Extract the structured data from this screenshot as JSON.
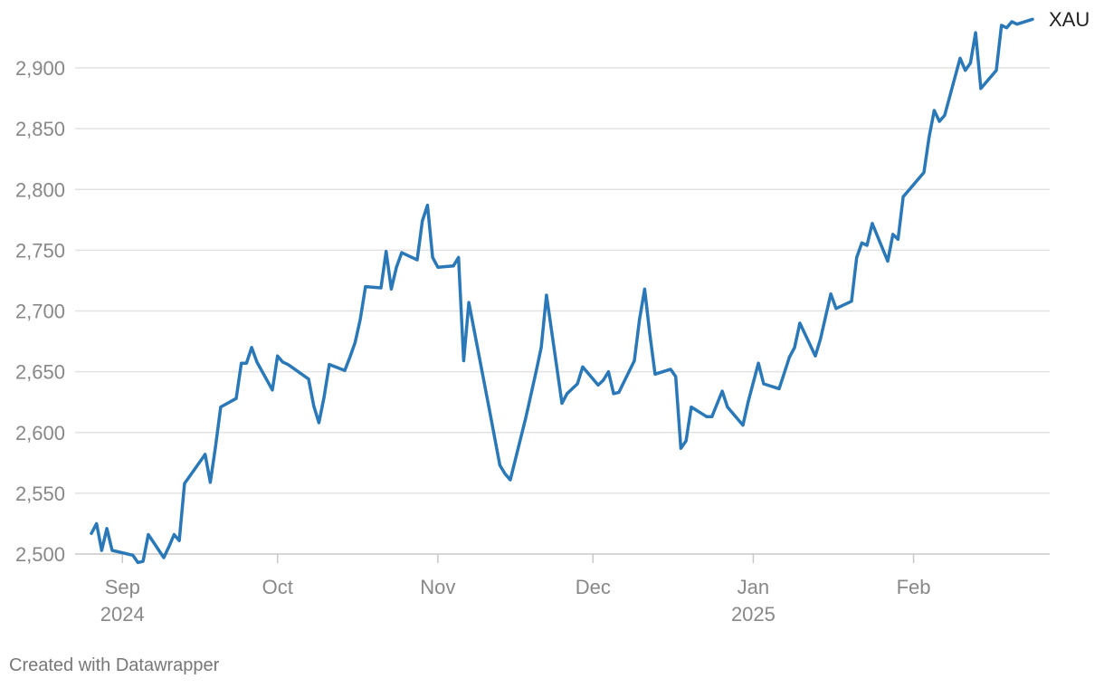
{
  "chart_data": {
    "type": "line",
    "title": "",
    "xlabel": "",
    "ylabel": "",
    "ylim": [
      2490,
      2950
    ],
    "y_ticks": [
      2500,
      2550,
      2600,
      2650,
      2700,
      2750,
      2800,
      2850,
      2900
    ],
    "y_tick_labels": [
      "2,500",
      "2,550",
      "2,600",
      "2,650",
      "2,700",
      "2,750",
      "2,800",
      "2,850",
      "2,900"
    ],
    "grid": true,
    "x_ticks": [
      {
        "date": "2024-09-01",
        "label": "Sep",
        "year": "2024"
      },
      {
        "date": "2024-10-01",
        "label": "Oct",
        "year": ""
      },
      {
        "date": "2024-11-01",
        "label": "Nov",
        "year": ""
      },
      {
        "date": "2024-12-01",
        "label": "Dec",
        "year": ""
      },
      {
        "date": "2025-01-01",
        "label": "Jan",
        "year": "2025"
      },
      {
        "date": "2025-02-01",
        "label": "Feb",
        "year": ""
      }
    ],
    "series": [
      {
        "name": "XAU",
        "color": "#2a78b8",
        "points": [
          [
            "2024-08-26",
            2517
          ],
          [
            "2024-08-27",
            2525
          ],
          [
            "2024-08-28",
            2503
          ],
          [
            "2024-08-29",
            2521
          ],
          [
            "2024-08-30",
            2503
          ],
          [
            "2024-09-03",
            2499
          ],
          [
            "2024-09-04",
            2493
          ],
          [
            "2024-09-05",
            2494
          ],
          [
            "2024-09-06",
            2516
          ],
          [
            "2024-09-09",
            2497
          ],
          [
            "2024-09-10",
            2506
          ],
          [
            "2024-09-11",
            2516
          ],
          [
            "2024-09-12",
            2511
          ],
          [
            "2024-09-13",
            2558
          ],
          [
            "2024-09-16",
            2576
          ],
          [
            "2024-09-17",
            2582
          ],
          [
            "2024-09-18",
            2559
          ],
          [
            "2024-09-19",
            2588
          ],
          [
            "2024-09-20",
            2621
          ],
          [
            "2024-09-23",
            2628
          ],
          [
            "2024-09-24",
            2657
          ],
          [
            "2024-09-25",
            2657
          ],
          [
            "2024-09-26",
            2670
          ],
          [
            "2024-09-27",
            2658
          ],
          [
            "2024-09-30",
            2635
          ],
          [
            "2024-10-01",
            2663
          ],
          [
            "2024-10-02",
            2658
          ],
          [
            "2024-10-03",
            2656
          ],
          [
            "2024-10-04",
            2653
          ],
          [
            "2024-10-07",
            2644
          ],
          [
            "2024-10-08",
            2622
          ],
          [
            "2024-10-09",
            2608
          ],
          [
            "2024-10-10",
            2629
          ],
          [
            "2024-10-11",
            2656
          ],
          [
            "2024-10-14",
            2651
          ],
          [
            "2024-10-15",
            2662
          ],
          [
            "2024-10-16",
            2674
          ],
          [
            "2024-10-17",
            2693
          ],
          [
            "2024-10-18",
            2720
          ],
          [
            "2024-10-21",
            2719
          ],
          [
            "2024-10-22",
            2749
          ],
          [
            "2024-10-23",
            2718
          ],
          [
            "2024-10-24",
            2736
          ],
          [
            "2024-10-25",
            2748
          ],
          [
            "2024-10-28",
            2742
          ],
          [
            "2024-10-29",
            2774
          ],
          [
            "2024-10-30",
            2787
          ],
          [
            "2024-10-31",
            2744
          ],
          [
            "2024-11-01",
            2736
          ],
          [
            "2024-11-04",
            2737
          ],
          [
            "2024-11-05",
            2744
          ],
          [
            "2024-11-06",
            2659
          ],
          [
            "2024-11-07",
            2707
          ],
          [
            "2024-11-11",
            2618
          ],
          [
            "2024-11-13",
            2573
          ],
          [
            "2024-11-14",
            2566
          ],
          [
            "2024-11-15",
            2561
          ],
          [
            "2024-11-18",
            2612
          ],
          [
            "2024-11-20",
            2650
          ],
          [
            "2024-11-21",
            2670
          ],
          [
            "2024-11-22",
            2713
          ],
          [
            "2024-11-25",
            2624
          ],
          [
            "2024-11-26",
            2632
          ],
          [
            "2024-11-27",
            2636
          ],
          [
            "2024-11-28",
            2640
          ],
          [
            "2024-11-29",
            2654
          ],
          [
            "2024-12-02",
            2639
          ],
          [
            "2024-12-03",
            2643
          ],
          [
            "2024-12-04",
            2650
          ],
          [
            "2024-12-05",
            2632
          ],
          [
            "2024-12-06",
            2633
          ],
          [
            "2024-12-09",
            2659
          ],
          [
            "2024-12-10",
            2693
          ],
          [
            "2024-12-11",
            2718
          ],
          [
            "2024-12-12",
            2681
          ],
          [
            "2024-12-13",
            2648
          ],
          [
            "2024-12-16",
            2652
          ],
          [
            "2024-12-17",
            2646
          ],
          [
            "2024-12-18",
            2587
          ],
          [
            "2024-12-19",
            2593
          ],
          [
            "2024-12-20",
            2621
          ],
          [
            "2024-12-23",
            2613
          ],
          [
            "2024-12-24",
            2613
          ],
          [
            "2024-12-26",
            2634
          ],
          [
            "2024-12-27",
            2621
          ],
          [
            "2024-12-30",
            2606
          ],
          [
            "2024-12-31",
            2625
          ],
          [
            "2025-01-02",
            2657
          ],
          [
            "2025-01-03",
            2640
          ],
          [
            "2025-01-06",
            2636
          ],
          [
            "2025-01-07",
            2649
          ],
          [
            "2025-01-08",
            2662
          ],
          [
            "2025-01-09",
            2670
          ],
          [
            "2025-01-10",
            2690
          ],
          [
            "2025-01-13",
            2663
          ],
          [
            "2025-01-14",
            2677
          ],
          [
            "2025-01-16",
            2714
          ],
          [
            "2025-01-17",
            2702
          ],
          [
            "2025-01-20",
            2708
          ],
          [
            "2025-01-21",
            2744
          ],
          [
            "2025-01-22",
            2756
          ],
          [
            "2025-01-23",
            2754
          ],
          [
            "2025-01-24",
            2772
          ],
          [
            "2025-01-27",
            2741
          ],
          [
            "2025-01-28",
            2763
          ],
          [
            "2025-01-29",
            2759
          ],
          [
            "2025-01-30",
            2794
          ],
          [
            "2025-01-31",
            2799
          ],
          [
            "2025-02-03",
            2814
          ],
          [
            "2025-02-04",
            2843
          ],
          [
            "2025-02-05",
            2865
          ],
          [
            "2025-02-06",
            2856
          ],
          [
            "2025-02-07",
            2861
          ],
          [
            "2025-02-10",
            2908
          ],
          [
            "2025-02-11",
            2898
          ],
          [
            "2025-02-12",
            2904
          ],
          [
            "2025-02-13",
            2929
          ],
          [
            "2025-02-14",
            2883
          ],
          [
            "2025-02-17",
            2898
          ],
          [
            "2025-02-18",
            2935
          ],
          [
            "2025-02-19",
            2933
          ],
          [
            "2025-02-20",
            2938
          ],
          [
            "2025-02-21",
            2936
          ],
          [
            "2025-02-24",
            2940
          ]
        ]
      }
    ]
  },
  "footer": {
    "credit": "Created with Datawrapper"
  }
}
